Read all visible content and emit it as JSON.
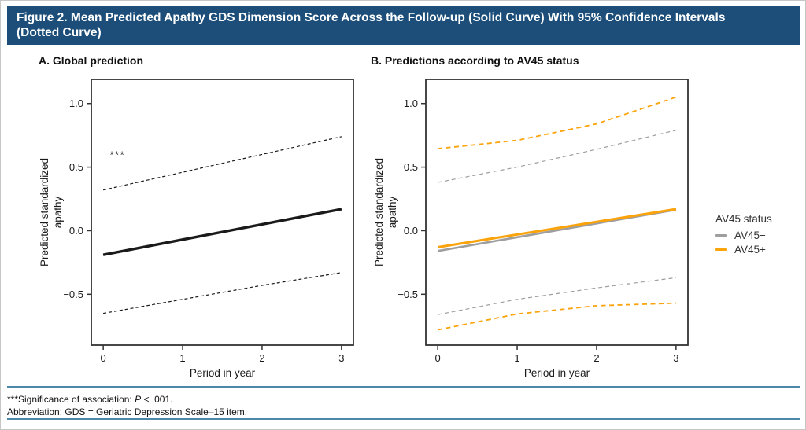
{
  "header": {
    "title_line1": "Figure 2. Mean Predicted Apathy GDS Dimension Score Across the Follow-up (Solid Curve) With 95% Confidence Intervals",
    "title_line2": "(Dotted Curve)",
    "bg_color": "#1c4e79",
    "text_color": "#ffffff"
  },
  "legend": {
    "title": "AV45 status",
    "items": [
      {
        "label": "AV45−",
        "color": "#9e9e9e"
      },
      {
        "label": "AV45+",
        "color": "#fba30a"
      }
    ]
  },
  "footnotes": {
    "line1_prefix": "***Significance of association: ",
    "line1_italic": "P",
    "line1_suffix": " < .001.",
    "line2": "Abbreviation: GDS = Geriatric Depression Scale–15 item.",
    "rule_color": "#4e87a7"
  },
  "chart_data": [
    {
      "type": "line",
      "title": "A. Global prediction",
      "xlabel": "Period in year",
      "ylabel": "Predicted standardized apathy",
      "ylabel_lines": [
        "Predicted standardized",
        "apathy"
      ],
      "xticks": [
        0,
        1,
        2,
        3
      ],
      "xtick_labels": [
        "0",
        "1",
        "2",
        "3"
      ],
      "yticks": [
        1.0,
        0.5,
        0.0,
        -0.5
      ],
      "ytick_labels": [
        "1.0",
        "0.5",
        "0.0",
        "−0.5"
      ],
      "xlim": [
        -0.15,
        3.15
      ],
      "ylim": [
        -0.9,
        1.19
      ],
      "grid": false,
      "legend_position": "none",
      "series": [
        {
          "name": "Mean prediction",
          "style": "solid",
          "color": "#1a1a1a",
          "width": 3.4,
          "x": [
            0,
            3
          ],
          "y": [
            -0.19,
            0.17
          ]
        },
        {
          "name": "Upper 95% CI",
          "style": "dashed",
          "dash": "4 3",
          "color": "#1a1a1a",
          "width": 1.2,
          "x": [
            0,
            1,
            2,
            3
          ],
          "y": [
            0.32,
            0.46,
            0.6,
            0.74
          ]
        },
        {
          "name": "Lower 95% CI",
          "style": "dashed",
          "dash": "4 3",
          "color": "#1a1a1a",
          "width": 1.2,
          "x": [
            0,
            1,
            2,
            3
          ],
          "y": [
            -0.65,
            -0.54,
            -0.43,
            -0.33
          ]
        }
      ],
      "annotations": [
        {
          "text": "***",
          "x": 0.18,
          "y": 0.57
        }
      ]
    },
    {
      "type": "line",
      "title": "B. Predictions according to AV45 status",
      "xlabel": "Period in year",
      "ylabel": "Predicted standardized apathy",
      "ylabel_lines": [
        "Predicted standardized",
        "apathy"
      ],
      "xticks": [
        0,
        1,
        2,
        3
      ],
      "xtick_labels": [
        "0",
        "1",
        "2",
        "3"
      ],
      "yticks": [
        1.0,
        0.5,
        0.0,
        -0.5
      ],
      "ytick_labels": [
        "1.0",
        "0.5",
        "0.0",
        "−0.5"
      ],
      "xlim": [
        -0.15,
        3.15
      ],
      "ylim": [
        -0.9,
        1.19
      ],
      "grid": false,
      "legend_position": "right",
      "series": [
        {
          "name": "AV45− mean",
          "style": "solid",
          "color": "#9e9e9e",
          "width": 2.6,
          "x": [
            0,
            3
          ],
          "y": [
            -0.16,
            0.165
          ]
        },
        {
          "name": "AV45+ mean",
          "style": "solid",
          "color": "#fba30a",
          "width": 3.0,
          "x": [
            0,
            3
          ],
          "y": [
            -0.13,
            0.17
          ]
        },
        {
          "name": "AV45− upper 95% CI",
          "style": "dashed",
          "dash": "5 4",
          "color": "#9e9e9e",
          "width": 1.2,
          "x": [
            0,
            1,
            2,
            3
          ],
          "y": [
            0.38,
            0.5,
            0.64,
            0.79
          ]
        },
        {
          "name": "AV45− lower 95% CI",
          "style": "dashed",
          "dash": "5 4",
          "color": "#9e9e9e",
          "width": 1.2,
          "x": [
            0,
            1,
            2,
            3
          ],
          "y": [
            -0.66,
            -0.54,
            -0.45,
            -0.37
          ]
        },
        {
          "name": "AV45+ upper 95% CI",
          "style": "dashed",
          "dash": "6 4.5",
          "color": "#fba30a",
          "width": 1.8,
          "x": [
            0,
            1,
            2,
            3
          ],
          "y": [
            0.645,
            0.71,
            0.84,
            1.05
          ]
        },
        {
          "name": "AV45+ lower 95% CI",
          "style": "dashed",
          "dash": "6 4.5",
          "color": "#fba30a",
          "width": 1.8,
          "x": [
            0,
            1,
            2,
            3
          ],
          "y": [
            -0.78,
            -0.655,
            -0.59,
            -0.57
          ]
        }
      ],
      "annotations": []
    }
  ]
}
